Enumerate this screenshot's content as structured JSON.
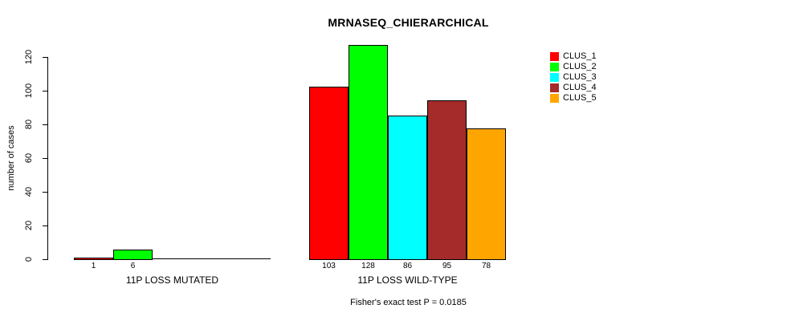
{
  "chart_data": {
    "type": "bar",
    "title": "MRNASEQ_CHIERARCHICAL",
    "ylabel": "number of cases",
    "xlabel": "",
    "ylim": [
      0,
      120
    ],
    "yticks": [
      0,
      20,
      40,
      60,
      80,
      100,
      120
    ],
    "grid": false,
    "legend_position": "top-right",
    "background_color": "#FFFFFF",
    "axis_color": "#000000",
    "series": [
      {
        "name": "CLUS_1",
        "color": "#FF0000"
      },
      {
        "name": "CLUS_2",
        "color": "#00FF00"
      },
      {
        "name": "CLUS_3",
        "color": "#00FFFF"
      },
      {
        "name": "CLUS_4",
        "color": "#A52A2A"
      },
      {
        "name": "CLUS_5",
        "color": "#FFA500"
      }
    ],
    "categories": [
      "11P LOSS MUTATED",
      "11P LOSS WILD-TYPE"
    ],
    "groups": [
      {
        "label": "11P LOSS MUTATED",
        "values": [
          1,
          6,
          0,
          0,
          0
        ],
        "bar_labels": [
          "1",
          "6",
          "",
          "",
          ""
        ]
      },
      {
        "label": "11P LOSS WILD-TYPE",
        "values": [
          103,
          128,
          86,
          95,
          78
        ],
        "bar_labels": [
          "103",
          "128",
          "86",
          "95",
          "78"
        ]
      }
    ],
    "annotation": "Fisher's exact test P = 0.0185"
  }
}
